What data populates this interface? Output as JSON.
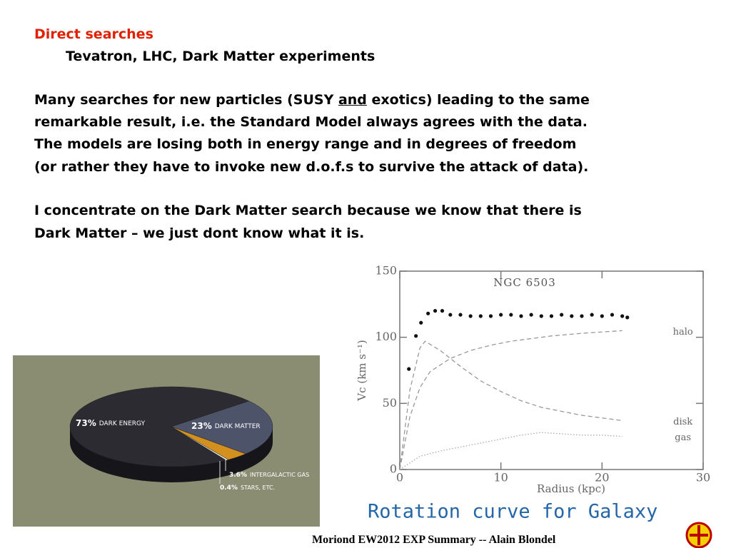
{
  "slide": {
    "heading": "Direct searches",
    "subheading": "Tevatron, LHC, Dark Matter experiments",
    "paragraph1": [
      [
        "Many searches for new particles (SUSY ",
        "and",
        " exotics) leading to the same"
      ],
      [
        "remarkable result, i.e. the Standard Model always agrees with the data."
      ],
      [
        "The models are losing both in energy range and in degrees of freedom"
      ],
      [
        "(or rather they have to invoke new d.o.f.s to survive the attack of data)."
      ]
    ],
    "paragraph2": [
      "I concentrate on the Dark Matter search because we know that there is",
      "Dark Matter – we just dont know what it is."
    ],
    "footer": "Moriond EW2012 EXP Summary -- Alain Blondel"
  },
  "chart_data": [
    {
      "type": "pie",
      "categories": [
        "DARK ENERGY",
        "DARK MATTER",
        "INTERGALACTIC GAS",
        "STARS, ETC."
      ],
      "values": [
        73,
        23,
        3.6,
        0.4
      ],
      "value_labels": [
        "73%",
        "23%",
        "3.6%",
        "0.4%"
      ],
      "colors": [
        "#2b2b31",
        "#4d5369",
        "#d4901e",
        "#e8eef0"
      ],
      "background": "#8b8d72"
    },
    {
      "type": "line",
      "title": "NGC 6503",
      "x_label": "Radius (kpc)",
      "y_label": "Vc (km s⁻¹)",
      "caption": "Rotation curve for Galaxy",
      "xlim": [
        0,
        30
      ],
      "xticks": [
        0,
        10,
        20,
        30
      ],
      "ylim": [
        0,
        150
      ],
      "yticks": [
        0,
        50,
        100,
        150
      ],
      "series": [
        {
          "style": "points",
          "color": "#111111",
          "x": [
            0.9,
            1.6,
            2.1,
            2.8,
            3.5,
            4.2,
            5,
            6,
            7,
            8,
            9,
            10,
            11,
            12,
            13,
            14,
            15,
            16,
            17,
            18,
            19,
            20,
            21,
            22,
            22.5
          ],
          "values": [
            76,
            101,
            111,
            118,
            120,
            120,
            117,
            117,
            116,
            116,
            116,
            117,
            117,
            116,
            117,
            116,
            116,
            117,
            116,
            116,
            117,
            116,
            117,
            116,
            115
          ]
        },
        {
          "name": "halo",
          "style": "dashed",
          "color": "#999999",
          "x": [
            0,
            1,
            2,
            3,
            5,
            7,
            9,
            11,
            13,
            15,
            18,
            22
          ],
          "values": [
            0,
            40,
            62,
            74,
            84,
            90,
            94,
            97,
            99,
            101,
            103,
            105
          ]
        },
        {
          "name": "disk",
          "style": "dashed",
          "color": "#999999",
          "x": [
            0,
            1,
            2,
            2.5,
            4,
            6,
            8,
            10,
            12,
            14,
            16,
            18,
            20,
            22
          ],
          "values": [
            0,
            60,
            92,
            97,
            90,
            78,
            67,
            59,
            52,
            47,
            44,
            41,
            39,
            37
          ]
        },
        {
          "name": "gas",
          "style": "dotted",
          "color": "#aaaaaa",
          "x": [
            0,
            2,
            4,
            6,
            8,
            10,
            12,
            14,
            16,
            18,
            20,
            22
          ],
          "values": [
            0,
            10,
            14,
            17,
            20,
            23,
            26,
            28,
            27,
            26,
            26,
            25
          ]
        }
      ]
    }
  ]
}
